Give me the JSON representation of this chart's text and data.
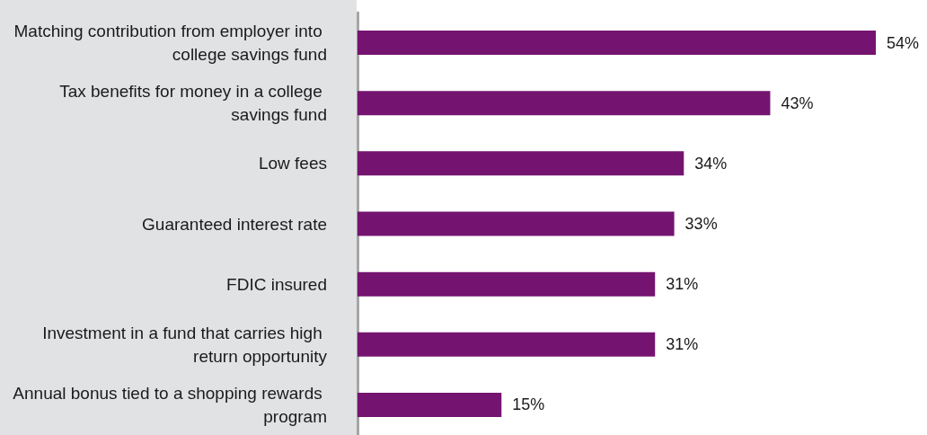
{
  "chart_data": {
    "type": "bar",
    "orientation": "horizontal",
    "categories": [
      "Matching contribution from employer into college savings fund",
      "Tax benefits for money in a college savings fund",
      "Low fees",
      "Guaranteed interest rate",
      "FDIC insured",
      "Investment in a fund that carries high return opportunity",
      "Annual bonus tied to a shopping rewards program"
    ],
    "values": [
      54,
      43,
      34,
      33,
      31,
      31,
      15
    ],
    "value_labels": [
      "54%",
      "43%",
      "34%",
      "33%",
      "31%",
      "31%",
      "15%"
    ],
    "color": "#741470"
  }
}
